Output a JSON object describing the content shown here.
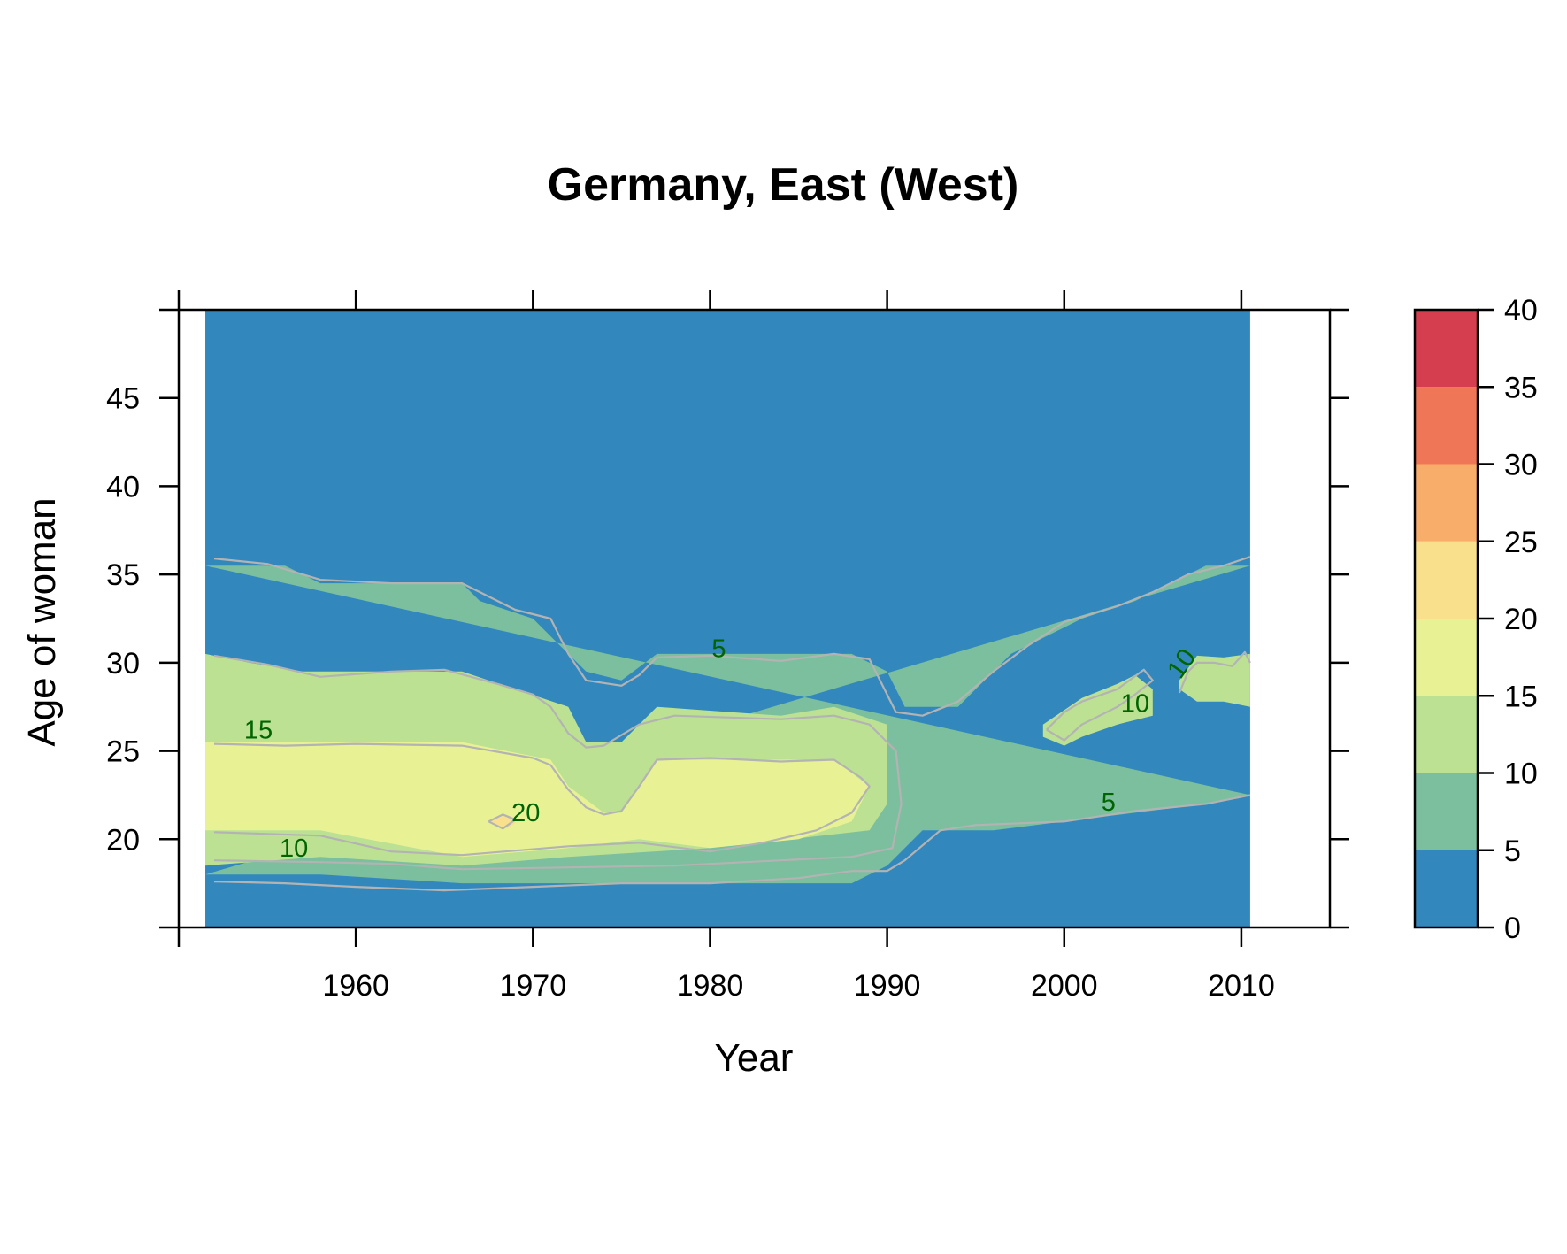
{
  "chart_data": {
    "type": "heatmap",
    "title": "Germany, East (West)",
    "xlabel": "Year",
    "ylabel": "Age of woman",
    "xlim": [
      1950,
      2015
    ],
    "ylim": [
      15,
      50
    ],
    "data_extent": {
      "x": [
        1951.5,
        2010.5
      ],
      "y": [
        15,
        50
      ]
    },
    "x_ticks": [
      1950,
      1960,
      1970,
      1980,
      1990,
      2000,
      2010
    ],
    "x_tick_labels": [
      "1960",
      "1970",
      "1980",
      "1990",
      "2000",
      "2010"
    ],
    "y_ticks": [
      20,
      25,
      30,
      35,
      40,
      45,
      50
    ],
    "y_tick_labels": [
      "20",
      "25",
      "30",
      "35",
      "40",
      "45"
    ],
    "colorbar": {
      "breaks": [
        0,
        5,
        10,
        15,
        20,
        25,
        30,
        35,
        40
      ],
      "tick_labels": [
        "0",
        "5",
        "10",
        "15",
        "20",
        "25",
        "30",
        "35",
        "40"
      ],
      "colors": [
        "#3288bd",
        "#7bbf9e",
        "#bce193",
        "#e8f294",
        "#f8e08c",
        "#f9ad6a",
        "#ef7656",
        "#d53e4f"
      ]
    },
    "regions": [
      {
        "level": "5-10",
        "color": "#7bbf9e",
        "upper": [
          [
            1951.5,
            35.5
          ],
          [
            1956,
            35.5
          ],
          [
            1957,
            35
          ],
          [
            1958,
            34.5
          ],
          [
            1962,
            34.5
          ],
          [
            1966,
            34.5
          ],
          [
            1967,
            33.5
          ],
          [
            1970,
            32.5
          ],
          [
            1972,
            30.5
          ],
          [
            1973,
            29.5
          ],
          [
            1975,
            29
          ],
          [
            1977,
            30.5
          ],
          [
            1980,
            30.5
          ],
          [
            1988,
            30.5
          ],
          [
            1990,
            29.5
          ],
          [
            1991,
            27.5
          ],
          [
            1994,
            27.5
          ],
          [
            1997,
            30.5
          ],
          [
            1999,
            31.5
          ],
          [
            2001,
            32.5
          ],
          [
            2004,
            33.5
          ],
          [
            2006,
            34.5
          ],
          [
            2008,
            35.5
          ],
          [
            2010.5,
            35.5
          ]
        ],
        "lower": [
          [
            1951.5,
            18
          ],
          [
            1958,
            18
          ],
          [
            1966,
            17.5
          ],
          [
            1976,
            17.5
          ],
          [
            1988,
            17.5
          ],
          [
            1990,
            18.5
          ],
          [
            1992,
            20.5
          ],
          [
            1996,
            20.5
          ],
          [
            2000,
            21
          ],
          [
            2004,
            21.5
          ],
          [
            2008,
            22
          ],
          [
            2010.5,
            22.5
          ]
        ]
      },
      {
        "level": "10-15",
        "color": "#bce193",
        "upper": [
          [
            1951.5,
            30.5
          ],
          [
            1954,
            30
          ],
          [
            1957,
            29.5
          ],
          [
            1962,
            29.5
          ],
          [
            1966,
            29.5
          ],
          [
            1969,
            28.5
          ],
          [
            1972,
            27.5
          ],
          [
            1973,
            25.5
          ],
          [
            1975,
            25.5
          ],
          [
            1977,
            27.5
          ],
          [
            1984,
            27
          ],
          [
            1987,
            27.5
          ],
          [
            1990,
            26.5
          ]
        ],
        "lower": [
          [
            1990,
            22
          ],
          [
            1989,
            20.5
          ],
          [
            1980,
            19.5
          ],
          [
            1972,
            19
          ],
          [
            1966,
            18.5
          ],
          [
            1958,
            19
          ],
          [
            1951.5,
            18.5
          ]
        ]
      },
      {
        "level": "15-20",
        "color": "#e8f294",
        "upper": [
          [
            1951.5,
            25.5
          ],
          [
            1958,
            25.5
          ],
          [
            1966,
            25.5
          ],
          [
            1971,
            24.5
          ],
          [
            1972,
            23
          ],
          [
            1974,
            21.5
          ],
          [
            1975,
            21.5
          ],
          [
            1977,
            24.5
          ],
          [
            1984,
            24.5
          ],
          [
            1987,
            24.5
          ],
          [
            1989,
            23
          ]
        ],
        "lower": [
          [
            1989,
            23
          ],
          [
            1988,
            21
          ],
          [
            1985,
            20
          ],
          [
            1980,
            19.5
          ],
          [
            1976,
            20
          ],
          [
            1972,
            19.5
          ],
          [
            1966,
            19
          ],
          [
            1958,
            20.5
          ],
          [
            1951.5,
            20.5
          ]
        ]
      },
      {
        "level": "20-25",
        "color": "#f8e08c",
        "upper": [
          [
            1967.5,
            21
          ],
          [
            1968.5,
            21.4
          ],
          [
            1969,
            21.2
          ]
        ],
        "lower": [
          [
            1969,
            20.9
          ],
          [
            1968.5,
            20.6
          ],
          [
            1967.5,
            21
          ]
        ]
      },
      {
        "level": "10-15",
        "color": "#bce193",
        "upper": [
          [
            1998.8,
            26.5
          ],
          [
            2001,
            28
          ],
          [
            2003,
            28.8
          ],
          [
            2004,
            29.3
          ],
          [
            2005,
            28.5
          ]
        ],
        "lower": [
          [
            2005,
            27
          ],
          [
            2003,
            26.5
          ],
          [
            2001,
            25.8
          ],
          [
            2000,
            25.3
          ],
          [
            1998.8,
            25.8
          ]
        ]
      },
      {
        "level": "10-15",
        "color": "#bce193",
        "upper": [
          [
            2006.5,
            29
          ],
          [
            2007.5,
            30.4
          ],
          [
            2009,
            30.3
          ],
          [
            2010.5,
            30.5
          ]
        ],
        "lower": [
          [
            2010.5,
            27.5
          ],
          [
            2009,
            27.8
          ],
          [
            2007.5,
            27.8
          ],
          [
            2006.5,
            28.5
          ]
        ]
      }
    ],
    "contours": [
      {
        "level": 5,
        "points": [
          [
            1952,
            35.9
          ],
          [
            1955,
            35.6
          ],
          [
            1958,
            34.7
          ],
          [
            1962,
            34.5
          ],
          [
            1966,
            34.5
          ],
          [
            1969,
            33
          ],
          [
            1971,
            32.5
          ],
          [
            1972,
            30.5
          ],
          [
            1973,
            29
          ],
          [
            1975,
            28.7
          ],
          [
            1976,
            29.3
          ],
          [
            1977,
            30.3
          ],
          [
            1980,
            30.4
          ],
          [
            1984,
            30.1
          ],
          [
            1987,
            30.5
          ],
          [
            1989,
            30.2
          ],
          [
            1990.5,
            27.2
          ],
          [
            1992,
            27
          ],
          [
            1994,
            27.8
          ],
          [
            1996,
            29.5
          ],
          [
            1998,
            31
          ],
          [
            2000,
            32.3
          ],
          [
            2003,
            33.2
          ],
          [
            2005,
            34
          ],
          [
            2007,
            35
          ],
          [
            2009,
            35.5
          ],
          [
            2010.5,
            36
          ]
        ]
      },
      {
        "level": 5,
        "points": [
          [
            1952,
            17.6
          ],
          [
            1956,
            17.5
          ],
          [
            1960,
            17.3
          ],
          [
            1965,
            17.1
          ],
          [
            1970,
            17.3
          ],
          [
            1975,
            17.5
          ],
          [
            1980,
            17.5
          ],
          [
            1985,
            17.8
          ],
          [
            1988,
            18.2
          ],
          [
            1990,
            18.2
          ],
          [
            1991,
            18.8
          ],
          [
            1993,
            20.5
          ],
          [
            1995,
            20.8
          ],
          [
            2000,
            21
          ],
          [
            2004,
            21.6
          ],
          [
            2008,
            22
          ],
          [
            2010.5,
            22.5
          ]
        ]
      },
      {
        "level": 10,
        "points": [
          [
            1952,
            30.4
          ],
          [
            1955,
            29.9
          ],
          [
            1958,
            29.2
          ],
          [
            1962,
            29.5
          ],
          [
            1965,
            29.6
          ],
          [
            1968,
            28.8
          ],
          [
            1970,
            28.2
          ],
          [
            1971,
            27.5
          ],
          [
            1972,
            26
          ],
          [
            1973,
            25.2
          ],
          [
            1974,
            25.3
          ],
          [
            1976,
            26.5
          ],
          [
            1978,
            27
          ],
          [
            1984,
            26.8
          ],
          [
            1987,
            27
          ],
          [
            1989,
            26.5
          ],
          [
            1990.5,
            25
          ],
          [
            1990.8,
            22
          ],
          [
            1990.3,
            19.5
          ],
          [
            1988,
            19
          ],
          [
            1984,
            18.8
          ],
          [
            1978,
            18.5
          ],
          [
            1972,
            18.4
          ],
          [
            1966,
            18.3
          ],
          [
            1962,
            18.6
          ],
          [
            1958,
            18.7
          ],
          [
            1952,
            18.8
          ]
        ]
      },
      {
        "level": 10,
        "points": [
          [
            1999,
            26.2
          ],
          [
            2000,
            27.2
          ],
          [
            2001,
            27.8
          ],
          [
            2003,
            28.5
          ],
          [
            2004.5,
            29.6
          ],
          [
            2005,
            29
          ],
          [
            2004,
            28.2
          ],
          [
            2003,
            27.5
          ],
          [
            2001,
            26.5
          ],
          [
            2000,
            25.6
          ],
          [
            1999,
            26.2
          ]
        ]
      },
      {
        "level": 10,
        "points": [
          [
            2006.5,
            28.3
          ],
          [
            2007,
            29.5
          ],
          [
            2007.5,
            30
          ],
          [
            2008.5,
            30
          ],
          [
            2009.5,
            29.8
          ],
          [
            2010.2,
            30.6
          ],
          [
            2010.5,
            30
          ]
        ]
      },
      {
        "level": 15,
        "points": [
          [
            1952,
            25.4
          ],
          [
            1956,
            25.3
          ],
          [
            1960,
            25.4
          ],
          [
            1966,
            25.3
          ],
          [
            1970,
            24.6
          ],
          [
            1971,
            24.2
          ],
          [
            1972,
            22.8
          ],
          [
            1973,
            21.8
          ],
          [
            1974,
            21.4
          ],
          [
            1975,
            21.6
          ],
          [
            1976,
            23
          ],
          [
            1977,
            24.5
          ],
          [
            1980,
            24.6
          ],
          [
            1984,
            24.4
          ],
          [
            1987,
            24.5
          ],
          [
            1988.5,
            23.5
          ],
          [
            1989,
            23
          ],
          [
            1988,
            21.5
          ],
          [
            1986,
            20.5
          ],
          [
            1983,
            19.8
          ],
          [
            1980,
            19.3
          ],
          [
            1976,
            19.8
          ],
          [
            1972,
            19.6
          ],
          [
            1966,
            19.1
          ],
          [
            1962,
            19.3
          ],
          [
            1958,
            20.2
          ],
          [
            1952,
            20.4
          ]
        ]
      },
      {
        "level": 20,
        "points": [
          [
            1967.5,
            21
          ],
          [
            1968.3,
            21.4
          ],
          [
            1969,
            21.1
          ],
          [
            1968.3,
            20.6
          ],
          [
            1967.5,
            21
          ]
        ]
      }
    ],
    "contour_labels": [
      {
        "text": "5",
        "x": 1980.5,
        "y": 30.7,
        "rotate": 0
      },
      {
        "text": "5",
        "x": 2002.5,
        "y": 22,
        "rotate": 0
      },
      {
        "text": "10",
        "x": 1956.5,
        "y": 19.4,
        "rotate": 0
      },
      {
        "text": "10",
        "x": 2004,
        "y": 27.6,
        "rotate": 0
      },
      {
        "text": "10",
        "x": 2006.7,
        "y": 29.9,
        "rotate": -55
      },
      {
        "text": "15",
        "x": 1954.5,
        "y": 26.1,
        "rotate": 0
      },
      {
        "text": "20",
        "x": 1969.6,
        "y": 21.4,
        "rotate": 0
      }
    ],
    "legend_position": "right",
    "grid": false
  }
}
